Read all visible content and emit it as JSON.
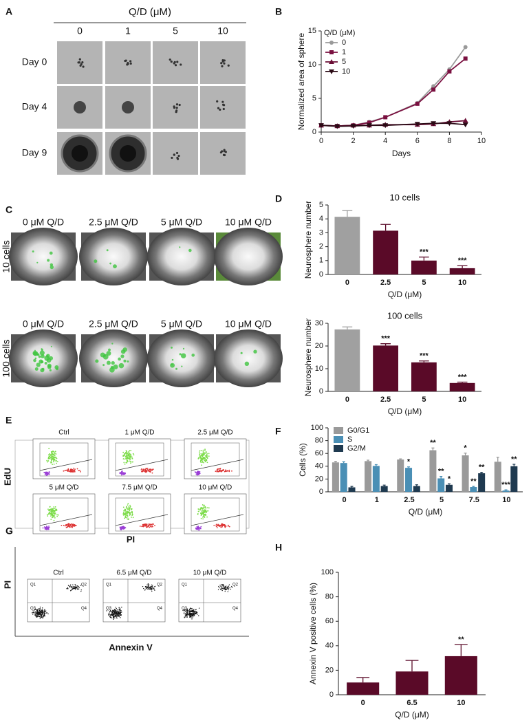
{
  "panel_labels": [
    "A",
    "B",
    "C",
    "D",
    "E",
    "F",
    "G",
    "H"
  ],
  "panel_a": {
    "title": "Q/D (μM)",
    "columns": [
      "0",
      "1",
      "5",
      "10"
    ],
    "rows": [
      "Day 0",
      "Day 4",
      "Day 9"
    ]
  },
  "panel_c": {
    "columns": [
      "0 μM Q/D",
      "2.5 μM Q/D",
      "5 μM Q/D",
      "10 μM Q/D"
    ],
    "rows": [
      "10 cells",
      "100 cells"
    ]
  },
  "panel_e": {
    "plots": [
      "Ctrl",
      "1 μM Q/D",
      "2.5 μM Q/D",
      "5 μM Q/D",
      "7.5 μM Q/D",
      "10 μM Q/D"
    ],
    "x_label": "PI",
    "y_label": "EdU"
  },
  "panel_g": {
    "plots": [
      "Ctrl",
      "6.5 μM Q/D",
      "10 μM Q/D"
    ],
    "quadrants": [
      "Q1",
      "Q2",
      "Q3",
      "Q4"
    ],
    "x_label": "Annexin V",
    "y_label": "PI"
  },
  "chart_data": [
    {
      "type": "line",
      "x": [
        0,
        1,
        2,
        3,
        4,
        6,
        7,
        8,
        9
      ],
      "xlim": [
        0,
        10
      ],
      "xticks": [
        0,
        2,
        4,
        6,
        8,
        10
      ],
      "ylim": [
        0,
        15
      ],
      "yticks": [
        0,
        5,
        10,
        15
      ],
      "x_label": "Days",
      "y_label": "Normalized area of sphere",
      "legend_title": "Q/D (μM)",
      "series": [
        {
          "name": "0",
          "color": "#999999",
          "marker": "circle",
          "values": [
            1,
            0.9,
            1.0,
            1.5,
            2.2,
            4.3,
            6.8,
            9.3,
            12.6
          ]
        },
        {
          "name": "1",
          "color": "#7a1040",
          "marker": "square",
          "values": [
            1,
            0.9,
            1.0,
            1.4,
            2.2,
            4.2,
            6.3,
            9.0,
            10.9
          ]
        },
        {
          "name": "5",
          "color": "#6a0d35",
          "marker": "triangle",
          "values": [
            1,
            0.9,
            1.0,
            1.0,
            1.1,
            1.1,
            1.2,
            1.5,
            1.7
          ]
        },
        {
          "name": "10",
          "color": "#2a0a15",
          "marker": "triangle-down",
          "values": [
            1,
            0.85,
            0.9,
            1.0,
            1.0,
            1.2,
            1.3,
            1.3,
            1.1
          ]
        }
      ]
    },
    {
      "type": "bar",
      "title": "10 cells",
      "categories": [
        "0",
        "2.5",
        "5",
        "10"
      ],
      "values": [
        4.15,
        3.15,
        1.0,
        0.45
      ],
      "errors": [
        0.45,
        0.45,
        0.25,
        0.18
      ],
      "colors": [
        "#a0a0a0",
        "#5a0a28",
        "#5a0a28",
        "#5a0a28"
      ],
      "annotations": [
        null,
        null,
        "***",
        "***"
      ],
      "ylim": [
        0,
        5
      ],
      "yticks": [
        0,
        1,
        2,
        3,
        4,
        5
      ],
      "x_label": "Q/D (μM)",
      "y_label": "Neurosphere number"
    },
    {
      "type": "bar",
      "title": "100 cells",
      "categories": [
        "0",
        "2.5",
        "5",
        "10"
      ],
      "values": [
        27.3,
        20.2,
        12.8,
        3.7
      ],
      "errors": [
        1.1,
        0.8,
        0.6,
        0.4
      ],
      "colors": [
        "#a0a0a0",
        "#5a0a28",
        "#5a0a28",
        "#5a0a28"
      ],
      "annotations": [
        null,
        "***",
        "***",
        "***"
      ],
      "ylim": [
        0,
        30
      ],
      "yticks": [
        0,
        10,
        20,
        30
      ],
      "x_label": "Q/D (μM)",
      "y_label": "Neurosphere number"
    },
    {
      "type": "bar",
      "categories": [
        "0",
        "1",
        "2.5",
        "5",
        "7.5",
        "10"
      ],
      "ylim": [
        0,
        100
      ],
      "yticks": [
        0,
        20,
        40,
        60,
        80,
        100
      ],
      "x_label": "Q/D (μM)",
      "y_label": "Cells (%)",
      "series": [
        {
          "name": "G0/G1",
          "color": "#9a9a9a",
          "values": [
            46,
            48,
            50.5,
            65,
            57,
            47
          ],
          "errors": [
            1.5,
            1.5,
            1,
            3.5,
            3.5,
            7
          ],
          "annotations": [
            null,
            null,
            null,
            "**",
            "*",
            null
          ]
        },
        {
          "name": "S",
          "color": "#4a8fb5",
          "values": [
            45,
            40.5,
            37.5,
            21,
            7.5,
            2
          ],
          "errors": [
            2,
            2,
            1.5,
            3,
            1,
            1
          ],
          "annotations": [
            null,
            null,
            "*",
            "**",
            "**",
            "***"
          ]
        },
        {
          "name": "G2/M",
          "color": "#1f3a50",
          "values": [
            7,
            9,
            9,
            11,
            29,
            40
          ],
          "errors": [
            1.5,
            1.5,
            2,
            1.5,
            1.5,
            3
          ],
          "annotations": [
            null,
            null,
            null,
            "*",
            "**",
            "**"
          ]
        }
      ]
    },
    {
      "type": "bar",
      "categories": [
        "0",
        "6.5",
        "10"
      ],
      "values": [
        10,
        19,
        31.5
      ],
      "errors": [
        4,
        9,
        9.5
      ],
      "colors": [
        "#5a0a28",
        "#5a0a28",
        "#5a0a28"
      ],
      "annotations": [
        null,
        null,
        "**"
      ],
      "ylim": [
        0,
        100
      ],
      "yticks": [
        0,
        20,
        40,
        60,
        80,
        100
      ],
      "x_label": "Q/D (μM)",
      "y_label": "Annexin V positive cells (%)"
    }
  ]
}
